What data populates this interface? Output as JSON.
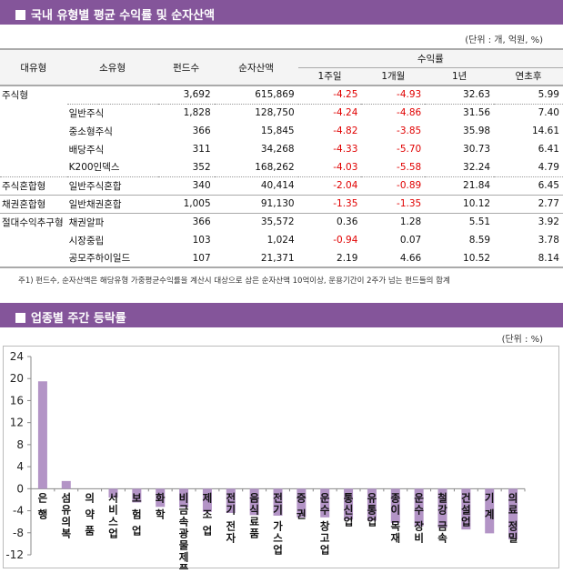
{
  "section1": {
    "title": "국내 유형별 평균 수익률 및 순자산액",
    "unit": "(단위 : 개, 억원, %)",
    "headers": {
      "major": "대유형",
      "minor": "소유형",
      "funds": "펀드수",
      "assets": "순자산액",
      "returns": "수익률",
      "w1": "1주일",
      "m1": "1개월",
      "y1": "1년",
      "ytd": "연초후"
    },
    "rows": [
      [
        "주식형",
        "",
        "3,692",
        "615,869",
        "-4.25",
        "-4.93",
        "32.63",
        "5.99"
      ],
      [
        "",
        "일반주식",
        "1,828",
        "128,750",
        "-4.24",
        "-4.86",
        "31.56",
        "7.40"
      ],
      [
        "",
        "중소형주식",
        "366",
        "15,845",
        "-4.82",
        "-3.85",
        "35.98",
        "14.61"
      ],
      [
        "",
        "배당주식",
        "311",
        "34,268",
        "-4.33",
        "-5.70",
        "30.73",
        "6.41"
      ],
      [
        "",
        "K200인덱스",
        "352",
        "168,262",
        "-4.03",
        "-5.58",
        "32.24",
        "4.79"
      ],
      [
        "주식혼합형",
        "일반주식혼합",
        "340",
        "40,414",
        "-2.04",
        "-0.89",
        "21.84",
        "6.45"
      ],
      [
        "채권혼합형",
        "일반채권혼합",
        "1,005",
        "91,130",
        "-1.35",
        "-1.35",
        "10.12",
        "2.77"
      ],
      [
        "절대수익추구형",
        "채권알파",
        "366",
        "35,572",
        "0.36",
        "1.28",
        "5.51",
        "3.92"
      ],
      [
        "",
        "시장중립",
        "103",
        "1,024",
        "-0.94",
        "0.07",
        "8.59",
        "3.78"
      ],
      [
        "",
        "공모주하이일드",
        "107",
        "21,371",
        "2.19",
        "4.66",
        "10.52",
        "8.14"
      ]
    ],
    "note": "주1) 펀드수, 순자산액은 해당유형 가중평균수익률을 계산시 대상으로 삼은 순자산액 10억이상, 운용기간이 2주가 넘는 펀드들의 합계"
  },
  "section2": {
    "title": "업종별 주간 등락률",
    "unit": "(단위 : %)"
  },
  "colors": {
    "header": "#84559a",
    "bar": "#b394c6",
    "negative": "#e00000"
  },
  "chart_data": {
    "type": "bar",
    "ylim": [
      -12,
      24
    ],
    "yticks": [
      -12,
      -8,
      -4,
      0,
      4,
      8,
      12,
      16,
      20,
      24
    ],
    "grid": false,
    "categories": [
      "은 행",
      "섬유의복",
      "의 약 품",
      "서비스업",
      "보 험 업",
      "화 학",
      "비금속광물제품",
      "제 조 업",
      "전기 전자",
      "음식료품",
      "전기 가스업",
      "증 권",
      "운수 창고업",
      "통신업",
      "유통업",
      "종이 목재",
      "운수 장비",
      "철강 금속",
      "건설업",
      "기 계",
      "의료 정밀"
    ],
    "values": [
      19.5,
      1.4,
      0.0,
      -1.6,
      -2.5,
      -3.3,
      -3.4,
      -4.2,
      -4.4,
      -4.8,
      -4.9,
      -5.2,
      -5.2,
      -5.6,
      -5.8,
      -6.2,
      -6.8,
      -7.1,
      -7.4,
      -8.1,
      -9.2
    ]
  }
}
